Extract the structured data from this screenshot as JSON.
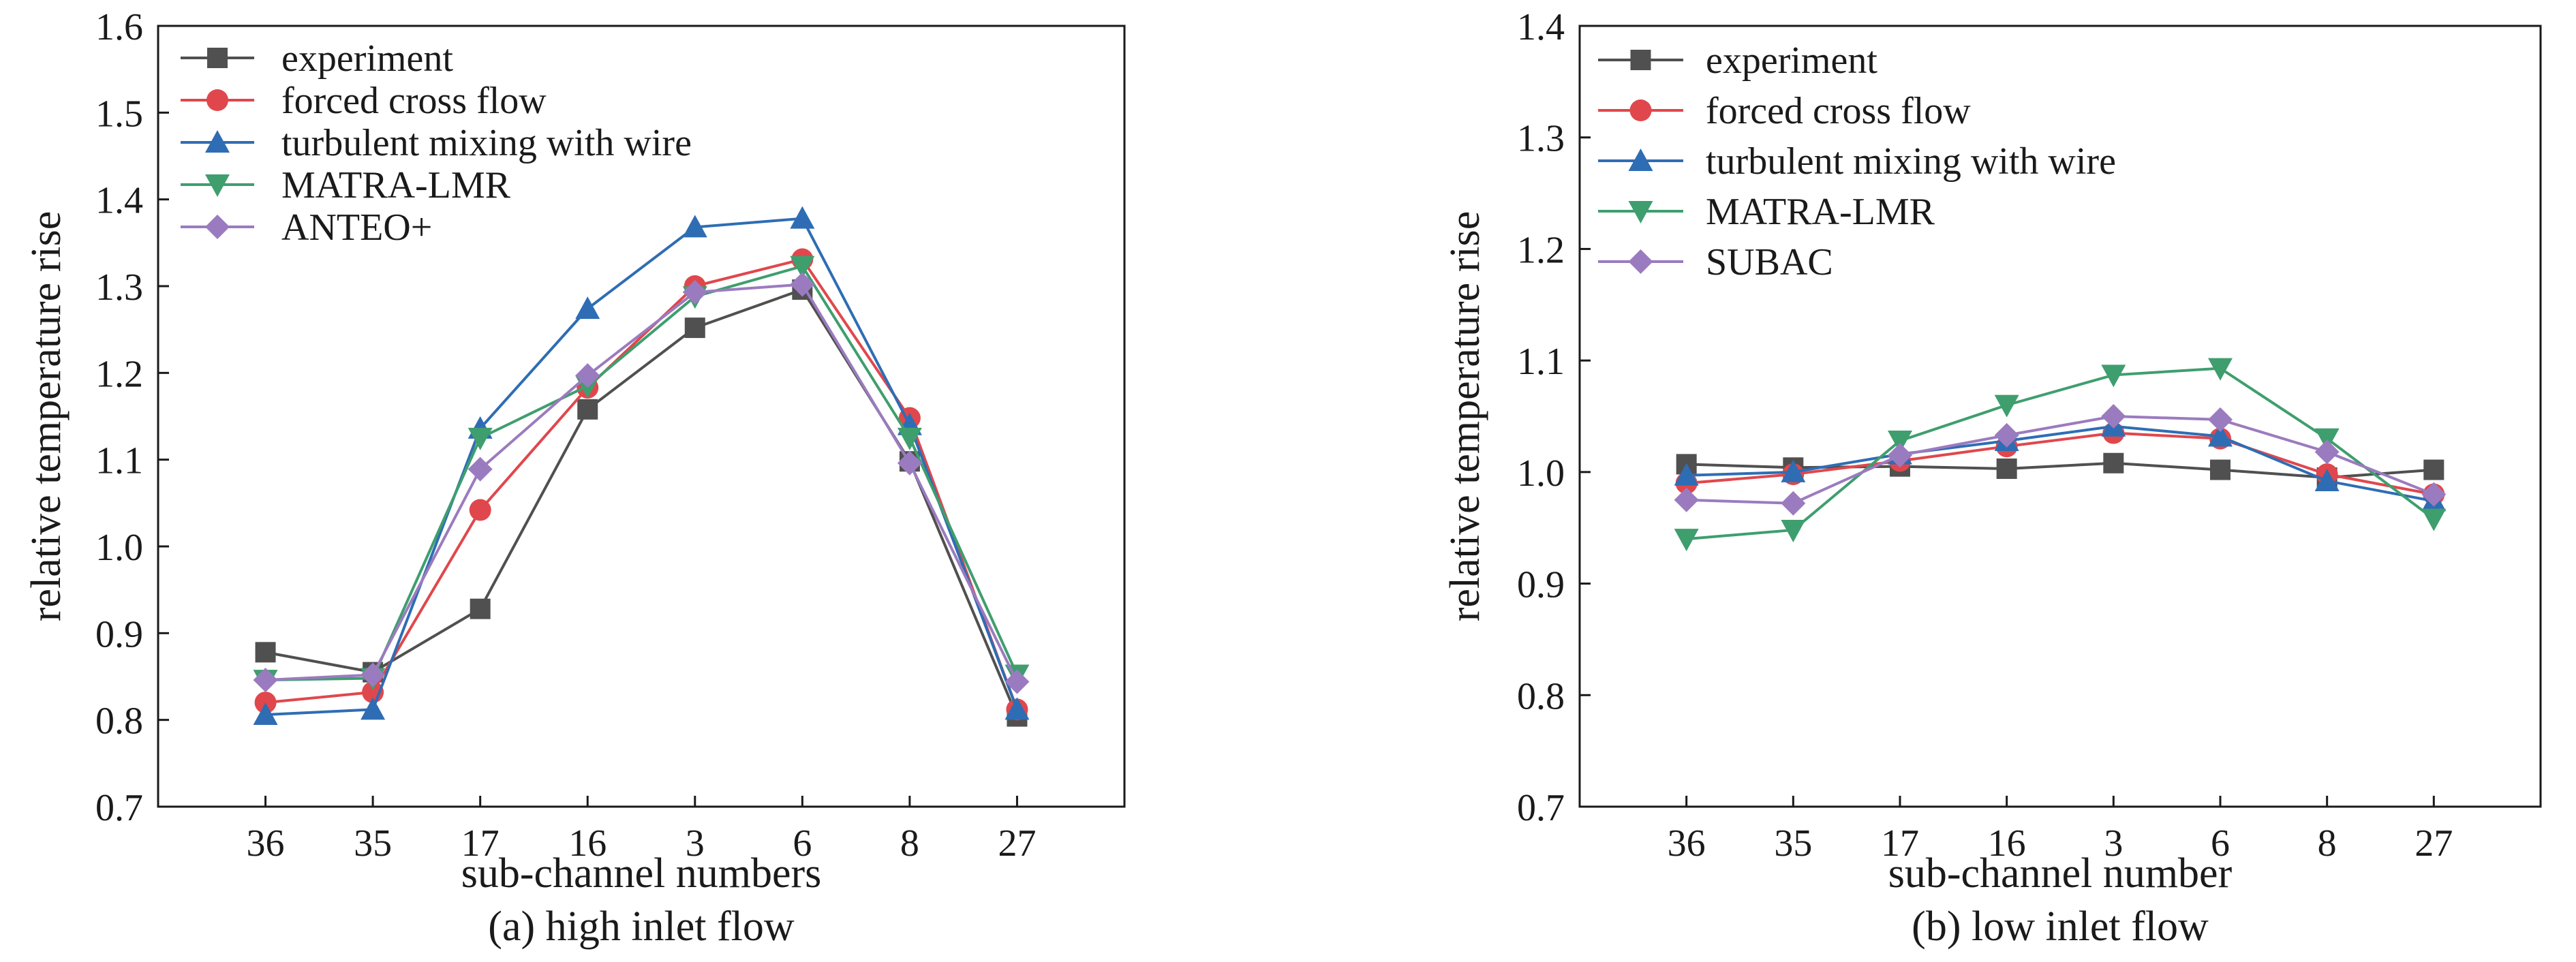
{
  "chart_data": [
    {
      "type": "line",
      "caption": "(a) high inlet flow",
      "title": "",
      "xlabel": "sub-channel numbers",
      "ylabel": "relative temperature rise",
      "categories": [
        "36",
        "35",
        "17",
        "16",
        "3",
        "6",
        "8",
        "27"
      ],
      "ylim": [
        0.7,
        1.6
      ],
      "yticks": [
        "0.7",
        "0.8",
        "0.9",
        "1.0",
        "1.1",
        "1.2",
        "1.3",
        "1.4",
        "1.5",
        "1.6"
      ],
      "grid": false,
      "legend_position": "top-left",
      "series": [
        {
          "name": "experiment",
          "color": "#505050",
          "marker": "square",
          "values": [
            0.878,
            0.855,
            0.928,
            1.158,
            1.252,
            1.296,
            1.098,
            0.804
          ]
        },
        {
          "name": "forced cross flow",
          "color": "#e0474c",
          "marker": "circle",
          "values": [
            0.82,
            0.832,
            1.042,
            1.183,
            1.3,
            1.331,
            1.148,
            0.812
          ]
        },
        {
          "name": "turbulent mixing with wire",
          "color": "#2e6db4",
          "marker": "triangle-up",
          "values": [
            0.806,
            0.812,
            1.136,
            1.274,
            1.368,
            1.378,
            1.14,
            0.812
          ]
        },
        {
          "name": "MATRA-LMR",
          "color": "#3f9e6e",
          "marker": "triangle-down",
          "values": [
            0.846,
            0.848,
            1.125,
            1.185,
            1.288,
            1.323,
            1.125,
            0.852
          ]
        },
        {
          "name": "ANTEO+",
          "color": "#9b7bbf",
          "marker": "diamond",
          "values": [
            0.846,
            0.852,
            1.089,
            1.197,
            1.293,
            1.302,
            1.096,
            0.844
          ]
        }
      ]
    },
    {
      "type": "line",
      "caption": "(b) low inlet flow",
      "title": "",
      "xlabel": "sub-channel number",
      "ylabel": "relative temperature rise",
      "categories": [
        "36",
        "35",
        "17",
        "16",
        "3",
        "6",
        "8",
        "27"
      ],
      "ylim": [
        0.7,
        1.4
      ],
      "yticks": [
        "0.7",
        "0.8",
        "0.9",
        "1.0",
        "1.1",
        "1.2",
        "1.3",
        "1.4"
      ],
      "grid": false,
      "legend_position": "top-left",
      "series": [
        {
          "name": "experiment",
          "color": "#505050",
          "marker": "square",
          "values": [
            1.007,
            1.004,
            1.005,
            1.003,
            1.008,
            1.002,
            0.995,
            1.002
          ]
        },
        {
          "name": "forced cross flow",
          "color": "#e0474c",
          "marker": "circle",
          "values": [
            0.99,
            0.998,
            1.01,
            1.023,
            1.035,
            1.03,
            0.998,
            0.98
          ]
        },
        {
          "name": "turbulent mixing with wire",
          "color": "#2e6db4",
          "marker": "triangle-up",
          "values": [
            0.997,
            1.0,
            1.016,
            1.028,
            1.041,
            1.032,
            0.992,
            0.974
          ]
        },
        {
          "name": "MATRA-LMR",
          "color": "#3f9e6e",
          "marker": "triangle-down",
          "values": [
            0.94,
            0.948,
            1.028,
            1.06,
            1.087,
            1.093,
            1.03,
            0.958
          ]
        },
        {
          "name": "SUBAC",
          "color": "#9b7bbf",
          "marker": "diamond",
          "values": [
            0.975,
            0.972,
            1.015,
            1.033,
            1.05,
            1.047,
            1.018,
            0.98
          ]
        }
      ]
    }
  ]
}
